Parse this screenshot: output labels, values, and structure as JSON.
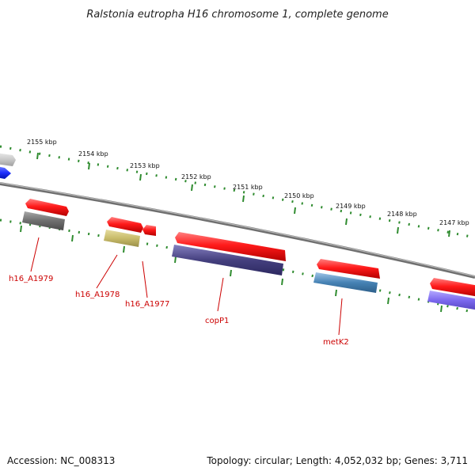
{
  "title": "Ralstonia eutropha H16 chromosome 1, complete genome",
  "footer": {
    "accession": "Accession: NC_008313",
    "summary": "Topology: circular; Length: 4,052,032 bp; Genes: 3,711"
  },
  "colors": {
    "backbone": "#8c8c8c",
    "ruler": "#2e8b2e",
    "label": "#cc0000",
    "cds": "#ff1a1a",
    "product_dark_gray": "#6e6e6e",
    "product_olive": "#c8bb6a",
    "product_dark_purple": "#45407f",
    "product_steel_blue": "#4682b4",
    "product_slate_blue": "#7b68ee",
    "product_blue": "#1e30ff",
    "product_light_gray": "#c8c8c8"
  },
  "upper_ruler_labels": [
    "2155 kbp",
    "2154 kbp",
    "2153 kbp",
    "2152 kbp",
    "2151 kbp",
    "2150 kbp",
    "2149 kbp",
    "2148 kbp",
    "2147 kbp"
  ],
  "gene_labels": [
    "h16_A1979",
    "h16_A1978",
    "h16_A1977",
    "copP1",
    "metK2"
  ]
}
